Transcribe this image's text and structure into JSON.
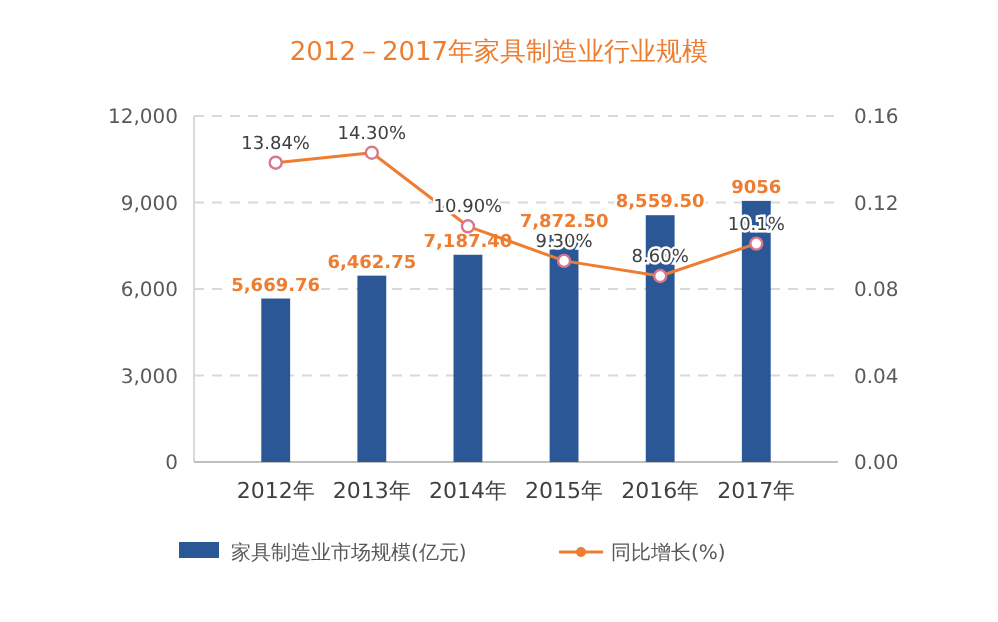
{
  "chart_data": {
    "type": "bar",
    "title": "2012－2017年家具制造业行业规模",
    "categories": [
      "2012年",
      "2013年",
      "2014年",
      "2015年",
      "2016年",
      "2017年"
    ],
    "series": [
      {
        "name": "家具制造业市场规模(亿元)",
        "type": "bar",
        "color": "#2b5797",
        "values": [
          5669.76,
          6462.75,
          7187.4,
          7872.5,
          8559.5,
          9056
        ],
        "value_labels": [
          "5,669.76",
          "6,462.75",
          "7,187.40",
          "7,872.50",
          "8,559.50",
          "9056"
        ]
      },
      {
        "name": "同比增长(%)",
        "type": "line",
        "axis": "y2",
        "color": "#ed7d31",
        "values": [
          0.1384,
          0.143,
          0.109,
          0.093,
          0.086,
          0.101
        ],
        "value_labels": [
          "13.84%",
          "14.30%",
          "10.90%",
          "9.30%",
          "8.60%",
          "10.1%"
        ]
      }
    ],
    "ylim": [
      0,
      12000
    ],
    "yticks": [
      {
        "value": 0,
        "label": "0"
      },
      {
        "value": 3000,
        "label": "3,000"
      },
      {
        "value": 6000,
        "label": "6,000"
      },
      {
        "value": 9000,
        "label": "9,000"
      },
      {
        "value": 12000,
        "label": "12,000"
      }
    ],
    "y2lim": [
      0,
      0.16
    ],
    "y2ticks": [
      {
        "value": 0,
        "label": "0.00"
      },
      {
        "value": 0.04,
        "label": "0.04"
      },
      {
        "value": 0.08,
        "label": "0.08"
      },
      {
        "value": 0.12,
        "label": "0.12"
      },
      {
        "value": 0.16,
        "label": "0.16"
      }
    ],
    "grid": "y",
    "legend": "bottom",
    "marker": "circle",
    "line_style": "solid"
  }
}
